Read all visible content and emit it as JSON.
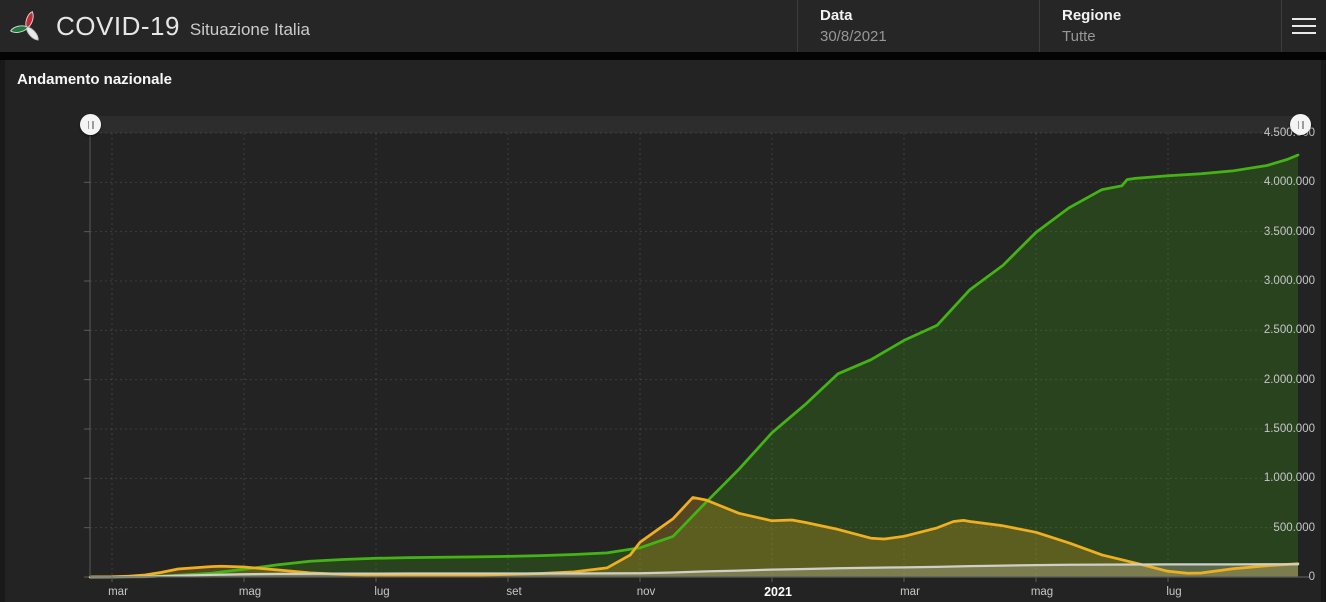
{
  "header": {
    "title": "COVID-19",
    "subtitle": "Situazione Italia",
    "logo_icon": "protezione-civile-logo",
    "menu_icon": "hamburger-menu-icon",
    "fields": [
      {
        "label": "Data",
        "value": "30/8/2021"
      },
      {
        "label": "Regione",
        "value": "Tutte"
      }
    ]
  },
  "panel": {
    "title": "Andamento nazionale"
  },
  "colors": {
    "page_bg": "#191919",
    "header_bg": "#262626",
    "panel_bg": "#232323",
    "grid": "rgba(255,255,255,0.12)",
    "axis": "#5a5a5a",
    "green": "#44b414",
    "orange": "#efaf1f",
    "gray": "#cfcfc8",
    "slider_track": "#2d2d2d",
    "slider_handle": "#f4f4f4"
  },
  "chart_data": {
    "type": "area",
    "title": "Andamento nazionale",
    "x_unit": "months since 1 Mar 2020",
    "xlim": [
      -0.333,
      18.15
    ],
    "ylim": [
      0,
      4500000
    ],
    "grid": true,
    "legend": "none",
    "x_ticks": [
      {
        "t": 0,
        "label": "mar"
      },
      {
        "t": 2,
        "label": "mag"
      },
      {
        "t": 4,
        "label": "lug"
      },
      {
        "t": 6,
        "label": "set"
      },
      {
        "t": 8,
        "label": "nov"
      },
      {
        "t": 10,
        "label": "2021",
        "emphasis": true
      },
      {
        "t": 12,
        "label": "mar"
      },
      {
        "t": 14,
        "label": "mag"
      },
      {
        "t": 16,
        "label": "lug"
      }
    ],
    "y_ticks": [
      {
        "v": 0,
        "label": "0"
      },
      {
        "v": 500000,
        "label": "500.000"
      },
      {
        "v": 1000000,
        "label": "1.000.000"
      },
      {
        "v": 1500000,
        "label": "1.500.000"
      },
      {
        "v": 2000000,
        "label": "2.000.000"
      },
      {
        "v": 2500000,
        "label": "2.500.000"
      },
      {
        "v": 3000000,
        "label": "3.000.000"
      },
      {
        "v": 3500000,
        "label": "3.500.000"
      },
      {
        "v": 4000000,
        "label": "4.000.000"
      },
      {
        "v": 4500000,
        "label": "4.500.000"
      }
    ],
    "series": [
      {
        "name": "green",
        "color": "#44b414",
        "fill_opacity": 0.22,
        "width": 2.75,
        "points": [
          [
            -0.33,
            0
          ],
          [
            0,
            100
          ],
          [
            0.5,
            2300
          ],
          [
            1,
            16800
          ],
          [
            1.5,
            38000
          ],
          [
            2,
            78000
          ],
          [
            2.5,
            123000
          ],
          [
            3,
            160000
          ],
          [
            3.5,
            177000
          ],
          [
            4,
            190000
          ],
          [
            4.5,
            197000
          ],
          [
            5,
            200600
          ],
          [
            5.5,
            203300
          ],
          [
            6,
            208500
          ],
          [
            6.5,
            216800
          ],
          [
            7,
            227700
          ],
          [
            7.5,
            244000
          ],
          [
            8,
            296000
          ],
          [
            8.5,
            411000
          ],
          [
            9,
            757000
          ],
          [
            9.5,
            1093000
          ],
          [
            10,
            1463000
          ],
          [
            10.5,
            1746000
          ],
          [
            11,
            2059000
          ],
          [
            11.5,
            2202000
          ],
          [
            12,
            2398000
          ],
          [
            12.5,
            2550000
          ],
          [
            13,
            2913000
          ],
          [
            13.5,
            3159000
          ],
          [
            14,
            3493000
          ],
          [
            14.5,
            3742000
          ],
          [
            15,
            3926000
          ],
          [
            15.3,
            3965000
          ],
          [
            15.38,
            4028000
          ],
          [
            15.5,
            4040000
          ],
          [
            16,
            4066000
          ],
          [
            16.5,
            4086000
          ],
          [
            17,
            4118000
          ],
          [
            17.5,
            4171000
          ],
          [
            17.8,
            4230000
          ],
          [
            17.97,
            4277000
          ]
        ]
      },
      {
        "name": "orange",
        "color": "#efaf1f",
        "fill_opacity": 0.25,
        "width": 2.75,
        "points": [
          [
            -0.33,
            0
          ],
          [
            0,
            1600
          ],
          [
            0.25,
            8000
          ],
          [
            0.5,
            20600
          ],
          [
            0.75,
            46600
          ],
          [
            1,
            80600
          ],
          [
            1.5,
            105400
          ],
          [
            1.65,
            108300
          ],
          [
            2,
            101000
          ],
          [
            2.5,
            72100
          ],
          [
            3,
            41400
          ],
          [
            3.5,
            25900
          ],
          [
            4,
            15300
          ],
          [
            4.5,
            12500
          ],
          [
            5,
            12400
          ],
          [
            5.5,
            16000
          ],
          [
            6,
            26800
          ],
          [
            6.5,
            35700
          ],
          [
            7,
            51300
          ],
          [
            7.5,
            92400
          ],
          [
            7.85,
            222000
          ],
          [
            8,
            351400
          ],
          [
            8.5,
            590000
          ],
          [
            8.8,
            805900
          ],
          [
            9,
            779900
          ],
          [
            9.5,
            645700
          ],
          [
            10,
            569900
          ],
          [
            10.3,
            577700
          ],
          [
            10.5,
            553400
          ],
          [
            11,
            482400
          ],
          [
            11.5,
            393700
          ],
          [
            11.7,
            385000
          ],
          [
            12,
            412000
          ],
          [
            12.5,
            497400
          ],
          [
            12.75,
            563000
          ],
          [
            12.9,
            573200
          ],
          [
            13,
            562800
          ],
          [
            13.5,
            519200
          ],
          [
            14,
            452800
          ],
          [
            14.5,
            346000
          ],
          [
            15,
            223800
          ],
          [
            15.5,
            142700
          ],
          [
            16,
            57700
          ],
          [
            16.3,
            39000
          ],
          [
            16.5,
            40600
          ],
          [
            17,
            84700
          ],
          [
            17.5,
            115000
          ],
          [
            17.97,
            133800
          ]
        ]
      },
      {
        "name": "gray",
        "color": "#cfcfc8",
        "fill_opacity": 0.28,
        "width": 2.25,
        "points": [
          [
            -0.33,
            0
          ],
          [
            0,
            35
          ],
          [
            0.5,
            1800
          ],
          [
            1,
            13200
          ],
          [
            1.5,
            21600
          ],
          [
            2,
            28200
          ],
          [
            2.5,
            31600
          ],
          [
            3,
            33400
          ],
          [
            3.5,
            34400
          ],
          [
            4,
            34800
          ],
          [
            4.5,
            35000
          ],
          [
            5,
            35100
          ],
          [
            5.5,
            35400
          ],
          [
            6,
            35500
          ],
          [
            6.5,
            35700
          ],
          [
            7,
            35900
          ],
          [
            7.5,
            36400
          ],
          [
            8,
            38800
          ],
          [
            8.5,
            45200
          ],
          [
            9,
            56400
          ],
          [
            9.5,
            65000
          ],
          [
            10,
            74600
          ],
          [
            10.5,
            81300
          ],
          [
            11,
            88800
          ],
          [
            11.5,
            93800
          ],
          [
            12,
            97700
          ],
          [
            12.5,
            102500
          ],
          [
            13,
            110000
          ],
          [
            13.5,
            115900
          ],
          [
            14,
            121000
          ],
          [
            14.5,
            124100
          ],
          [
            15,
            126100
          ],
          [
            15.5,
            127100
          ],
          [
            16,
            127600
          ],
          [
            16.5,
            127900
          ],
          [
            17,
            128100
          ],
          [
            17.5,
            128500
          ],
          [
            17.97,
            129100
          ]
        ]
      }
    ]
  }
}
